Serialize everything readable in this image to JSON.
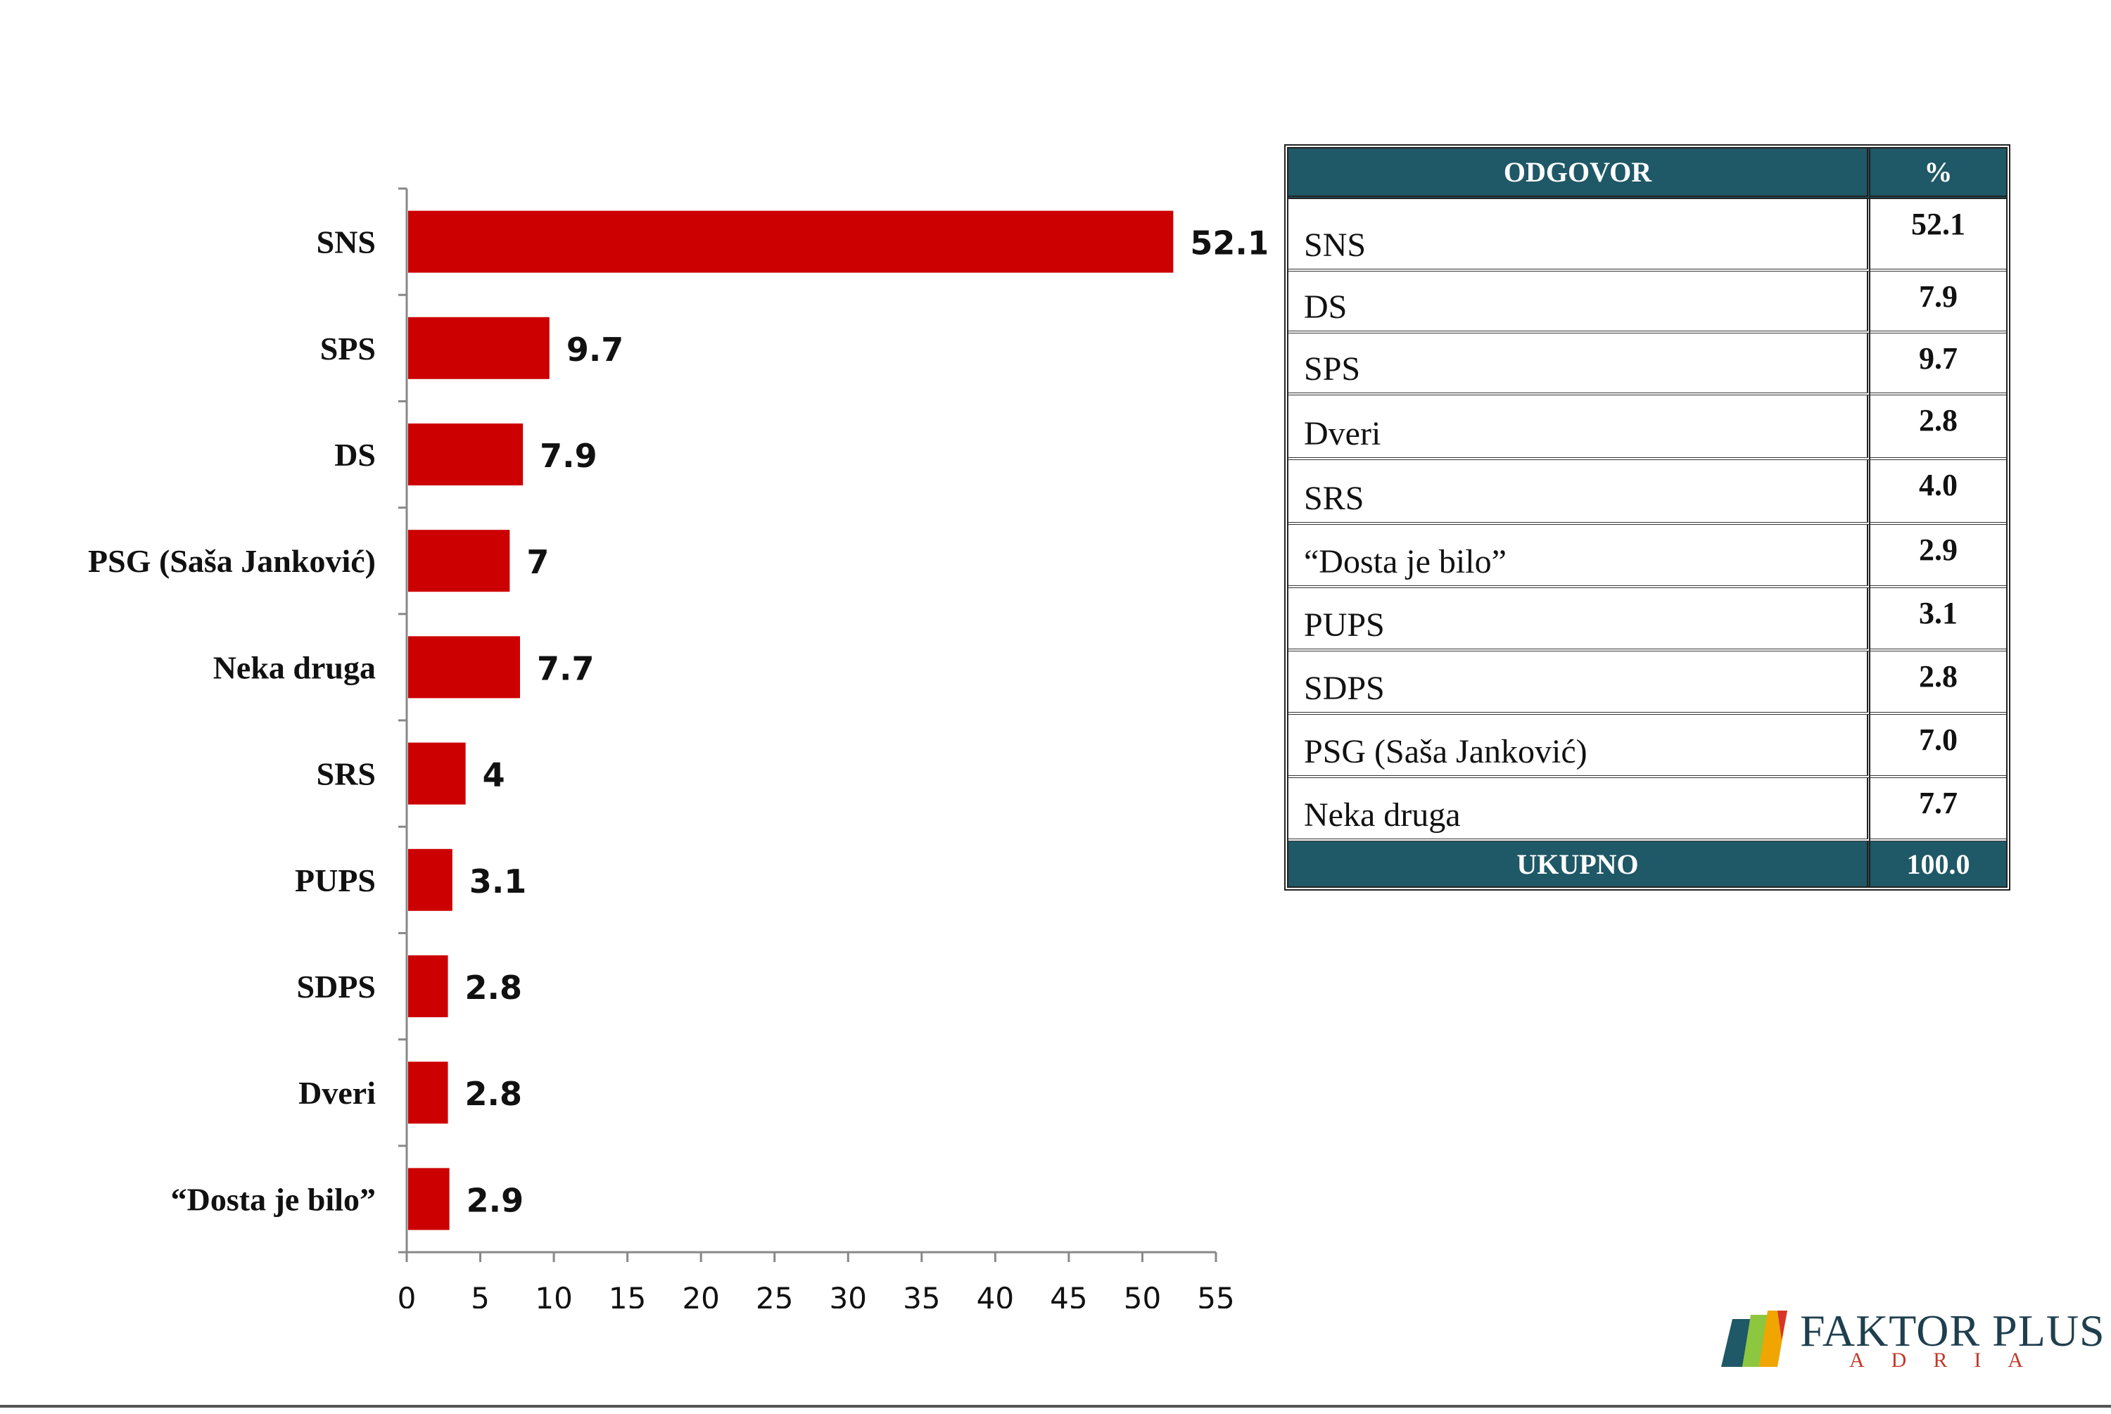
{
  "chart_data": {
    "type": "bar",
    "orientation": "horizontal",
    "categories": [
      "SNS",
      "SPS",
      "DS",
      "PSG (Saša Janković)",
      "Neka druga",
      "SRS",
      "PUPS",
      "SDPS",
      "Dveri",
      "“Dosta je bilo”"
    ],
    "values": [
      52.1,
      9.7,
      7.9,
      7,
      7.7,
      4,
      3.1,
      2.8,
      2.8,
      2.9
    ],
    "value_labels": [
      "52.1",
      "9.7",
      "7.9",
      "7",
      "7.7",
      "4",
      "3.1",
      "2.8",
      "2.8",
      "2.9"
    ],
    "xlim": [
      0,
      55
    ],
    "xticks": [
      "0",
      "5",
      "10",
      "15",
      "20",
      "25",
      "30",
      "35",
      "40",
      "45",
      "50",
      "55"
    ],
    "bar_color": "#cc0000",
    "grid": false,
    "legend": "none"
  },
  "table": {
    "header": {
      "answer": "ODGOVOR",
      "percent": "%"
    },
    "rows": [
      {
        "name": "SNS",
        "value": "52.1"
      },
      {
        "name": "DS",
        "value": "7.9"
      },
      {
        "name": "SPS",
        "value": "9.7"
      },
      {
        "name": "Dveri",
        "value": "2.8"
      },
      {
        "name": "SRS",
        "value": "4.0"
      },
      {
        "name": "“Dosta je bilo”",
        "value": "2.9"
      },
      {
        "name": "PUPS",
        "value": "3.1"
      },
      {
        "name": "SDPS",
        "value": "2.8"
      },
      {
        "name": "PSG (Saša Janković)",
        "value": "7.0"
      },
      {
        "name": "Neka druga",
        "value": "7.7"
      }
    ],
    "total": {
      "name": "UKUPNO",
      "value": "100.0"
    },
    "header_color": "#1f5866"
  },
  "logo": {
    "name": "FAKTOR PLUS",
    "sub": "ADRIA"
  }
}
